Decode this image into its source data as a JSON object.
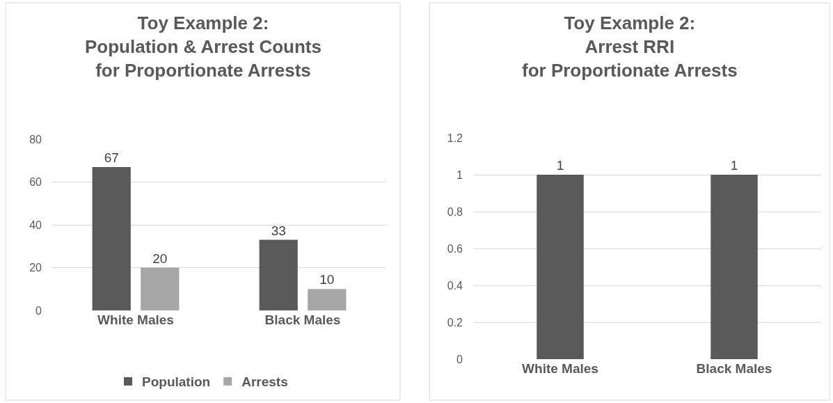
{
  "chart_data": [
    {
      "type": "bar",
      "title": "Toy Example 2:\nPopulation & Arrest Counts\nfor Proportionate Arrests",
      "categories": [
        "White Males",
        "Black Males"
      ],
      "series": [
        {
          "name": "Population",
          "color": "#595959",
          "values": [
            67,
            33
          ]
        },
        {
          "name": "Arrests",
          "color": "#a6a6a6",
          "values": [
            20,
            10
          ]
        }
      ],
      "ylim": [
        0,
        80
      ],
      "yticks": [
        0,
        20,
        40,
        60,
        80
      ],
      "grid": "y",
      "legend": "bottom",
      "data_labels": true
    },
    {
      "type": "bar",
      "title": "Toy Example 2:\nArrest RRI\nfor Proportionate Arrests",
      "categories": [
        "White Males",
        "Black Males"
      ],
      "series": [
        {
          "color": "#595959",
          "values": [
            1,
            1
          ]
        }
      ],
      "ylim": [
        0,
        1.2
      ],
      "yticks": [
        0,
        0.2,
        0.4,
        0.6,
        0.8,
        1,
        1.2
      ],
      "grid": "y",
      "data_labels": true
    }
  ]
}
